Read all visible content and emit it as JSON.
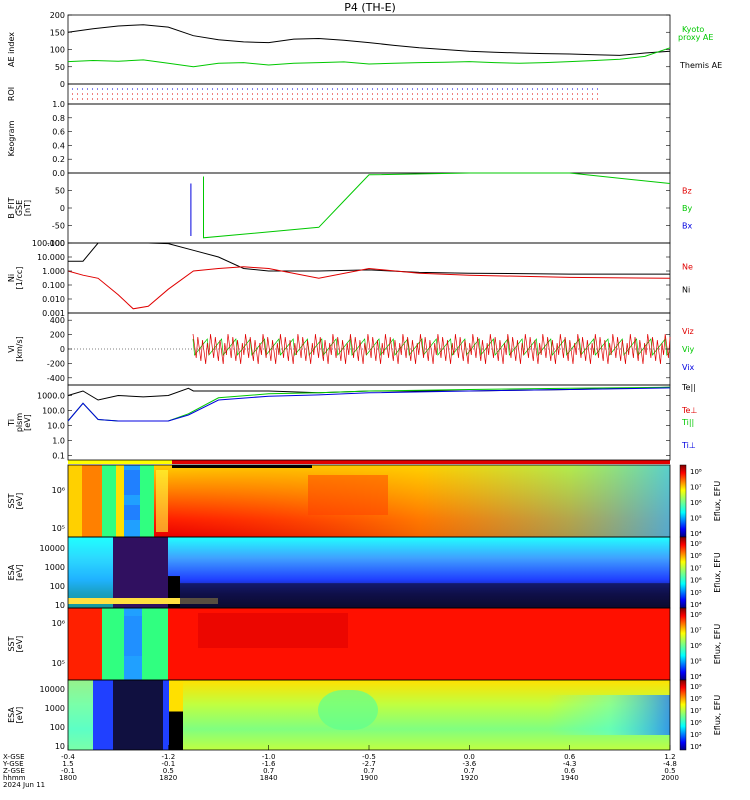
{
  "title": "P4 (TH-E)",
  "colors": {
    "black": "#000000",
    "green": "#00c800",
    "red": "#e00000",
    "blue": "#0000e0",
    "yellow": "#ffff00",
    "thm_mode_red": "#e00000"
  },
  "footer": {
    "row_labels": [
      "X-GSE",
      "Y-GSE",
      "Z-GSE",
      "hhmm",
      "2024 Jun 11"
    ],
    "columns": [
      {
        "x": "-0.4",
        "y": "1.5",
        "z": "-0.1",
        "t": "1800"
      },
      {
        "x": "-1.2",
        "y": "-0.1",
        "z": "0.5",
        "t": "1820"
      },
      {
        "x": "-1.0",
        "y": "-1.6",
        "z": "0.7",
        "t": "1840"
      },
      {
        "x": "-0.5",
        "y": "-2.7",
        "z": "0.7",
        "t": "1900"
      },
      {
        "x": "0.0",
        "y": "-3.6",
        "z": "0.7",
        "t": "1920"
      },
      {
        "x": "0.6",
        "y": "-4.3",
        "z": "0.6",
        "t": "1940"
      },
      {
        "x": "1.2",
        "y": "-4.8",
        "z": "0.5",
        "t": "2000"
      }
    ]
  },
  "chart_data": [
    {
      "type": "line",
      "panel": "ae",
      "ylabel": "AE index",
      "ylim": [
        0,
        200
      ],
      "yticks": [
        "200",
        "150",
        "100",
        "50",
        "0"
      ],
      "series": [
        {
          "name": "Themis AE",
          "color": "black",
          "x": [
            "1800",
            "1805",
            "1810",
            "1815",
            "1820",
            "1825",
            "1830",
            "1835",
            "1840",
            "1845",
            "1850",
            "1855",
            "1900",
            "1905",
            "1910",
            "1915",
            "1920",
            "1925",
            "1930",
            "1935",
            "1940",
            "1945",
            "1950",
            "1955",
            "2000"
          ],
          "values": [
            150,
            160,
            168,
            172,
            165,
            140,
            128,
            122,
            120,
            130,
            132,
            127,
            120,
            112,
            105,
            100,
            95,
            92,
            90,
            88,
            87,
            85,
            83,
            90,
            95
          ]
        },
        {
          "name": "Kyoto proxy AE",
          "color": "green",
          "x": [
            "1800",
            "1805",
            "1810",
            "1815",
            "1820",
            "1825",
            "1830",
            "1835",
            "1840",
            "1845",
            "1850",
            "1855",
            "1900",
            "1905",
            "1910",
            "1915",
            "1920",
            "1925",
            "1930",
            "1935",
            "1940",
            "1945",
            "1950",
            "1955",
            "2000"
          ],
          "values": [
            65,
            68,
            66,
            70,
            60,
            50,
            60,
            62,
            55,
            60,
            62,
            64,
            58,
            60,
            62,
            63,
            65,
            62,
            60,
            62,
            65,
            68,
            72,
            80,
            105
          ]
        }
      ],
      "legend": [
        "Kyoto",
        "proxy AE",
        "Themis AE"
      ]
    },
    {
      "type": "line",
      "panel": "roi",
      "ylabel": "ROI"
    },
    {
      "type": "heatmap",
      "panel": "keogram",
      "ylabel": "Keogram",
      "ylim": [
        0.0,
        1.0
      ],
      "yticks": [
        "1.0",
        "0.8",
        "0.6",
        "0.4",
        "0.2",
        "0.0"
      ]
    },
    {
      "type": "line",
      "panel": "bfield",
      "ylabel": "B_FIT",
      "ylabel2": "GSE",
      "ylabel3": "[nT]",
      "ylim": [
        -100,
        100
      ],
      "yticks": [
        "50",
        "0",
        "-50",
        "-100"
      ],
      "legend": [
        "Bz",
        "By",
        "Bx"
      ],
      "series": [
        {
          "name": "Bx",
          "color": "blue",
          "x": [
            "1824.5",
            "1824.5"
          ],
          "values": [
            70,
            -80
          ]
        },
        {
          "name": "By",
          "color": "green",
          "x": [
            "1827",
            "1827",
            "1850",
            "1855",
            "1900",
            "1920",
            "1940",
            "2000"
          ],
          "values": [
            90,
            -85,
            -55,
            20,
            95,
            110,
            100,
            70
          ]
        }
      ]
    },
    {
      "type": "line",
      "panel": "density",
      "ylabel": "Ni",
      "ylabel2": "[1/cc]",
      "yscale": "log",
      "yticks": [
        "100.000",
        "10.000",
        "1.000",
        "0.100",
        "0.010",
        "0.001"
      ],
      "legend": [
        "Ne",
        "Ni"
      ],
      "series": [
        {
          "name": "Ni",
          "color": "black",
          "x": [
            "1800",
            "1803",
            "1806",
            "1810",
            "1813",
            "1816",
            "1820",
            "1825",
            "1830",
            "1835",
            "1840",
            "1850",
            "1900",
            "1910",
            "1920",
            "1940",
            "2000"
          ],
          "values": [
            5,
            5,
            120,
            150,
            130,
            110,
            90,
            30,
            10,
            1.5,
            1.0,
            1.0,
            1.2,
            0.8,
            0.7,
            0.6,
            0.6
          ]
        },
        {
          "name": "Ne",
          "color": "red",
          "x": [
            "1800",
            "1803",
            "1806",
            "1810",
            "1813",
            "1816",
            "1820",
            "1825",
            "1830",
            "1835",
            "1840",
            "1850",
            "1900",
            "1910",
            "1920",
            "1940",
            "2000"
          ],
          "values": [
            1,
            0.5,
            0.3,
            0.02,
            0.002,
            0.003,
            0.05,
            1,
            1.5,
            2,
            1.5,
            0.3,
            1.5,
            0.7,
            0.5,
            0.35,
            0.3
          ]
        }
      ]
    },
    {
      "type": "line",
      "panel": "velocity",
      "ylabel": "Vi",
      "ylabel2": "[km/s]",
      "ylim": [
        -500,
        500
      ],
      "yticks": [
        "400",
        "200",
        "0",
        "-200",
        "-400"
      ],
      "legend": [
        "Viz",
        "Viy",
        "Vix"
      ],
      "series": [
        {
          "name": "Viz",
          "color": "red"
        },
        {
          "name": "Viy",
          "color": "green"
        },
        {
          "name": "Vix",
          "color": "blue"
        }
      ]
    },
    {
      "type": "line",
      "panel": "temperature",
      "ylabel": "Ti",
      "ylabel2": "plsm",
      "ylabel3": "[eV]",
      "yscale": "log",
      "yticks": [
        "1000.0",
        "100.0",
        "10.0",
        "1.0",
        "0.1"
      ],
      "legend": [
        "Te||",
        "Te⊥",
        "Ti||",
        "Ti⊥"
      ],
      "series": [
        {
          "name": "Te||",
          "color": "black",
          "x": [
            "1800",
            "1803",
            "1806",
            "1810",
            "1815",
            "1820",
            "1824",
            "1825",
            "1830",
            "1840",
            "1850",
            "1900",
            "1905",
            "1910",
            "1920",
            "1940",
            "2000"
          ],
          "values": [
            1000,
            2000,
            500,
            1000,
            800,
            1000,
            3000,
            2000,
            2000,
            2000,
            1500,
            2000,
            2000,
            2000,
            2000,
            2500,
            3500
          ]
        },
        {
          "name": "Te⊥",
          "color": "red"
        },
        {
          "name": "Ti||",
          "color": "green",
          "x": [
            "1800",
            "1803",
            "1806",
            "1810",
            "1815",
            "1820",
            "1824",
            "1830",
            "1840",
            "1850",
            "1900",
            "1920",
            "1940",
            "2000"
          ],
          "values": [
            20,
            300,
            25,
            20,
            20,
            20,
            60,
            700,
            1300,
            1500,
            2000,
            2500,
            3000,
            3500
          ]
        },
        {
          "name": "Ti⊥",
          "color": "blue",
          "x": [
            "1800",
            "1803",
            "1806",
            "1810",
            "1815",
            "1820",
            "1824",
            "1830",
            "1840",
            "1850",
            "1900",
            "1920",
            "1940",
            "2000"
          ],
          "values": [
            20,
            300,
            25,
            20,
            20,
            20,
            50,
            500,
            900,
            1100,
            1500,
            2000,
            2500,
            3200
          ]
        }
      ]
    },
    {
      "type": "heatmap",
      "panel": "sst_e",
      "ylabel": "SST",
      "ylabel2": "[eV]",
      "yscale": "log",
      "yticks": [
        "10⁶",
        "10⁵"
      ],
      "colorbar": {
        "label": "Eflux, EFU",
        "ticks": [
          "10⁸",
          "10⁷",
          "10⁶",
          "10⁵",
          "10⁴"
        ]
      }
    },
    {
      "type": "heatmap",
      "panel": "esa_e",
      "ylabel": "ESA",
      "ylabel2": "[eV]",
      "yscale": "log",
      "yticks": [
        "10000",
        "1000",
        "100",
        "10"
      ],
      "colorbar": {
        "label": "Eflux, EFU",
        "ticks": [
          "10⁹",
          "10⁸",
          "10⁷",
          "10⁶",
          "10⁵",
          "10⁴"
        ]
      }
    },
    {
      "type": "heatmap",
      "panel": "sst_i",
      "ylabel": "SST",
      "ylabel2": "[eV]",
      "yscale": "log",
      "yticks": [
        "10⁶",
        "10⁵"
      ],
      "colorbar": {
        "label": "Eflux, EFU",
        "ticks": [
          "10⁸",
          "10⁷",
          "10⁶",
          "10⁵",
          "10⁴"
        ]
      }
    },
    {
      "type": "heatmap",
      "panel": "esa_i",
      "ylabel": "ESA",
      "ylabel2": "[eV]",
      "yscale": "log",
      "yticks": [
        "10000",
        "1000",
        "100",
        "10"
      ],
      "colorbar": {
        "label": "Eflux, EFU",
        "ticks": [
          "10⁹",
          "10⁸",
          "10⁷",
          "10⁶",
          "10⁵",
          "10⁴"
        ]
      }
    }
  ]
}
